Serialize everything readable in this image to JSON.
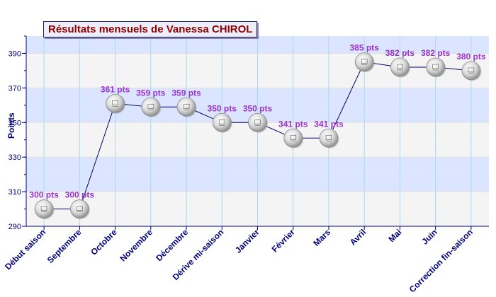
{
  "chart_data": {
    "type": "line",
    "title": "Résultats mensuels de Vanessa CHIROL",
    "xlabel": "",
    "ylabel": "Points",
    "categories": [
      "Début saison",
      "Septembre",
      "Octobre",
      "Novembre",
      "Décembre",
      "Dérive mi-saison",
      "Janvier",
      "Février",
      "Mars",
      "Avril",
      "Mai",
      "Juin",
      "Correction fin-saison"
    ],
    "series": [
      {
        "values": [
          300,
          300,
          361,
          359,
          359,
          350,
          350,
          341,
          341,
          385,
          382,
          382,
          380
        ],
        "labels": [
          "300 pts",
          "300 pts",
          "361 pts",
          "359 pts",
          "359 pts",
          "350 pts",
          "350 pts",
          "341 pts",
          "341 pts",
          "385 pts",
          "382 pts",
          "382 pts",
          "380 pts"
        ]
      }
    ],
    "yticks": [
      "290",
      "310",
      "330",
      "350",
      "370",
      "390"
    ],
    "ylim": [
      290,
      400
    ],
    "grid": true,
    "colors": {
      "band_light": "#f4f4f4",
      "band_blue": "#dbe5ff",
      "line": "#000066",
      "label": "#9933cc",
      "axis_text": "#00007a",
      "title_text": "#8b0000",
      "gridline_v": "#a8d8ef"
    },
    "marker_icon": "ping-pong-ball-icon"
  }
}
